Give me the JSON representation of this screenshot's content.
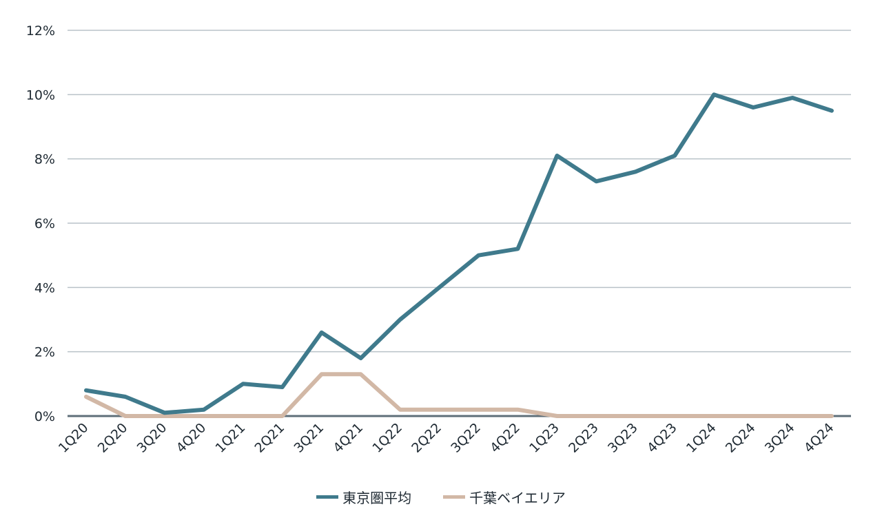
{
  "chart_data": {
    "type": "line",
    "title": "",
    "xlabel": "",
    "ylabel": "",
    "ylim": [
      0,
      12
    ],
    "yticks": [
      "0%",
      "2%",
      "4%",
      "6%",
      "8%",
      "10%",
      "12%"
    ],
    "ytick_values": [
      0,
      2,
      4,
      6,
      8,
      10,
      12
    ],
    "grid": true,
    "legend_position": "bottom",
    "categories": [
      "1Q20",
      "2Q20",
      "3Q20",
      "4Q20",
      "1Q21",
      "2Q21",
      "3Q21",
      "4Q21",
      "1Q22",
      "2Q22",
      "3Q22",
      "4Q22",
      "1Q23",
      "2Q23",
      "3Q23",
      "4Q23",
      "1Q24",
      "2Q24",
      "3Q24",
      "4Q24"
    ],
    "series": [
      {
        "name": "東京圏平均",
        "color": "#3f7a8c",
        "values": [
          0.8,
          0.6,
          0.1,
          0.2,
          1.0,
          0.9,
          2.6,
          1.8,
          3.0,
          4.0,
          5.0,
          5.2,
          8.1,
          7.3,
          7.6,
          8.1,
          10.0,
          9.6,
          9.9,
          9.5
        ]
      },
      {
        "name": "千葉ベイエリア",
        "color": "#d2b8a6",
        "values": [
          0.6,
          0.0,
          0.0,
          0.0,
          0.0,
          0.0,
          1.3,
          1.3,
          0.2,
          0.2,
          0.2,
          0.2,
          0.0,
          0.0,
          0.0,
          0.0,
          0.0,
          0.0,
          0.0,
          0.0
        ]
      }
    ]
  },
  "colors": {
    "gridline": "#b9c2c8",
    "axis": "#5e6e78",
    "text": "#1f2a33"
  },
  "legend": {
    "items": [
      {
        "label": "東京圏平均",
        "color": "#3f7a8c"
      },
      {
        "label": "千葉ベイエリア",
        "color": "#d2b8a6"
      }
    ]
  }
}
